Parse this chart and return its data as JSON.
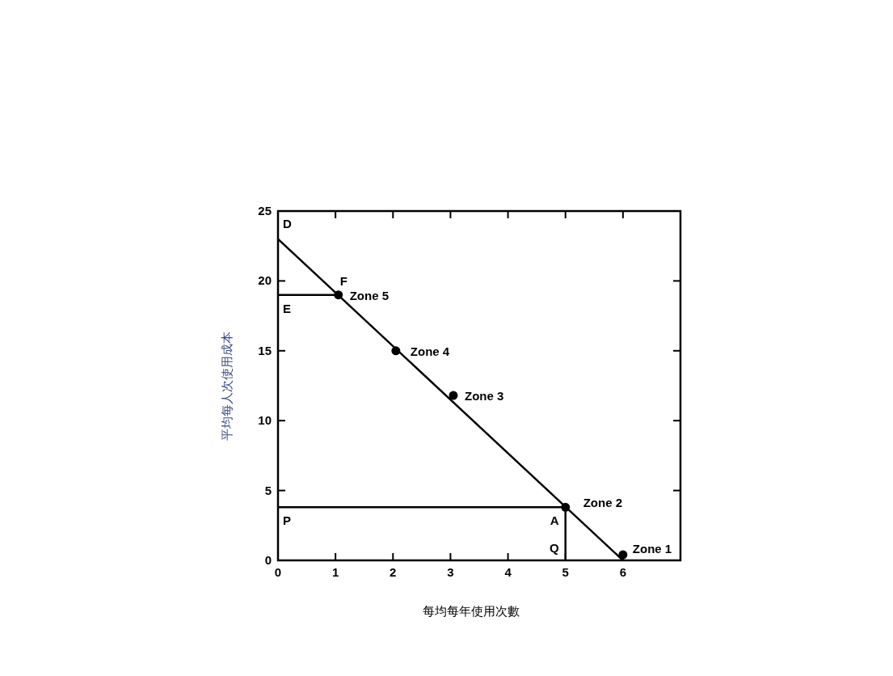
{
  "chart_data": {
    "type": "scatter",
    "xlabel": "每均每年使用次數",
    "ylabel": "平均每人次使用成本",
    "xlim": [
      0,
      7
    ],
    "ylim": [
      0,
      25
    ],
    "xticks": [
      0,
      1,
      2,
      3,
      4,
      5,
      6
    ],
    "yticks": [
      0,
      5,
      10,
      15,
      20,
      25
    ],
    "grid": false,
    "series": [
      {
        "type": "line",
        "marker": "none",
        "x": [
          0,
          6
        ],
        "values": [
          23,
          0
        ],
        "color": "#000000"
      },
      {
        "type": "line",
        "marker": "none",
        "x": [
          0,
          1.05
        ],
        "values": [
          19,
          19
        ],
        "color": "#000000"
      },
      {
        "type": "line",
        "marker": "none",
        "x": [
          0,
          5,
          5
        ],
        "values": [
          3.8,
          3.8,
          0
        ],
        "color": "#000000"
      },
      {
        "marker": "circle",
        "x": [
          6,
          5,
          3.05,
          2.05,
          1.05
        ],
        "values": [
          0.4,
          3.8,
          11.8,
          15,
          19
        ],
        "color": "#000000"
      }
    ],
    "annotations": [
      {
        "text": "Zone 1",
        "x": 6,
        "y": 0.4
      },
      {
        "text": "Zone 2",
        "x": 5,
        "y": 3.8
      },
      {
        "text": "Zone 3",
        "x": 3.05,
        "y": 11.8
      },
      {
        "text": "Zone 4",
        "x": 2.05,
        "y": 15
      },
      {
        "text": "Zone 5",
        "x": 1.05,
        "y": 19
      },
      {
        "text": "D",
        "x": 0,
        "y": 23
      },
      {
        "text": "F",
        "x": 1.05,
        "y": 19
      },
      {
        "text": "E",
        "x": 0,
        "y": 19
      },
      {
        "text": "P",
        "x": 0,
        "y": 3.8
      },
      {
        "text": "A",
        "x": 5,
        "y": 3.8
      },
      {
        "text": "Q",
        "x": 5,
        "y": 0
      }
    ]
  }
}
